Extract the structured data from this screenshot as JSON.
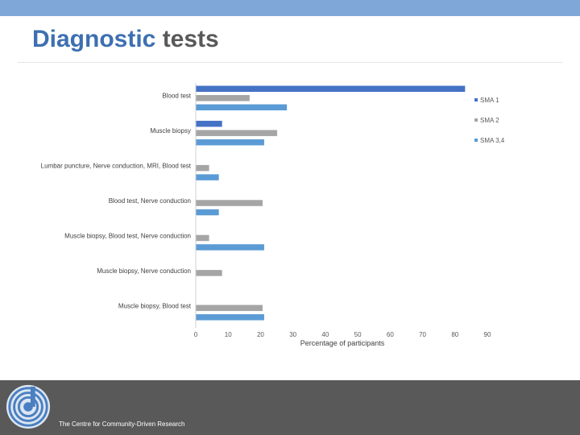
{
  "header": {
    "title_first": "Diagnostic",
    "title_second": " tests"
  },
  "footer": {
    "org_name": "The Centre for Community-Driven Research"
  },
  "colors": {
    "top_band": "#7fa8d8",
    "title_accent": "#3d6fb2",
    "footer_bg": "#595959"
  },
  "chart_data": {
    "type": "bar",
    "orientation": "horizontal",
    "categories": [
      "Blood test",
      "Muscle biopsy",
      "Lumbar puncture, Nerve conduction, MRI, Blood test",
      "Blood test, Nerve conduction",
      "Muscle biopsy, Blood test, Nerve conduction",
      "Muscle biopsy, Nerve conduction",
      "Muscle biopsy, Blood test"
    ],
    "series": [
      {
        "name": "SMA 1",
        "color": "#4472c4",
        "values": [
          83,
          8,
          0,
          0,
          0,
          0,
          0
        ]
      },
      {
        "name": "SMA 2",
        "color": "#a5a5a5",
        "values": [
          16.5,
          25,
          4,
          20.5,
          4,
          8,
          20.5
        ]
      },
      {
        "name": "SMA 3,4",
        "color": "#5b9bd5",
        "values": [
          28,
          21,
          7,
          7,
          21,
          0,
          21
        ]
      }
    ],
    "xlabel": "Percentage of participants",
    "xlim": [
      0,
      90
    ],
    "xticks": [
      0,
      10,
      20,
      30,
      40,
      50,
      60,
      70,
      80,
      90
    ],
    "grid": false,
    "legend_position": "right"
  }
}
